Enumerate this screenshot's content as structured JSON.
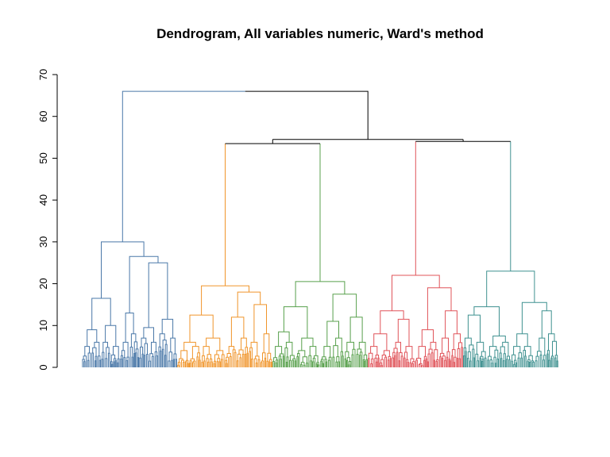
{
  "chart_data": {
    "type": "dendrogram",
    "title": "Dendrogram, All variables numeric, Ward's method",
    "xlabel": "",
    "ylabel": "",
    "ylim": [
      0,
      70
    ],
    "yticks": [
      0,
      10,
      20,
      30,
      40,
      50,
      60,
      70
    ],
    "grid": false,
    "root_color": "#000000",
    "clusters": [
      {
        "color": "#4a78a8",
        "height": 30,
        "tree": [
          [
            16.5,
            [
              9,
              5,
              6
            ],
            [
              10,
              6,
              5
            ]
          ],
          [
            26.5,
            [
              13,
              6,
              8
            ],
            [
              25,
              [
                9.5,
                7,
                6
              ],
              [
                11.5,
                8,
                7
              ]
            ]
          ]
        ]
      },
      {
        "color": "#f0952b",
        "height": 19.5,
        "tree": [
          [
            12.5,
            [
              6,
              4,
              5
            ],
            [
              7,
              5,
              4
            ]
          ],
          [
            18,
            [
              12,
              5,
              7
            ],
            [
              15,
              6,
              8
            ]
          ]
        ]
      },
      {
        "color": "#58a04c",
        "height": 20.5,
        "tree": [
          [
            14.5,
            [
              8.5,
              5,
              6
            ],
            [
              7,
              4,
              5
            ]
          ],
          [
            17.5,
            [
              11,
              5,
              7
            ],
            [
              12,
              6,
              6
            ]
          ]
        ]
      },
      {
        "color": "#e0545a",
        "height": 22,
        "tree": [
          [
            13.5,
            [
              8,
              5,
              4
            ],
            [
              11.5,
              6,
              5
            ]
          ],
          [
            19,
            [
              9,
              5,
              6
            ],
            [
              13.5,
              7,
              8
            ]
          ]
        ]
      },
      {
        "color": "#3f9190",
        "height": 23,
        "tree": [
          [
            14.5,
            [
              12.5,
              7,
              6
            ],
            [
              7.5,
              5,
              6
            ]
          ],
          [
            15.5,
            [
              8,
              5,
              5
            ],
            [
              13.5,
              7,
              8
            ]
          ]
        ]
      }
    ],
    "merges": [
      {
        "left": 1,
        "right": 2,
        "height": 53.5
      },
      {
        "left": 3,
        "right": 4,
        "height": 54
      },
      {
        "left": "m0",
        "right": "m1",
        "height": 54.5
      },
      {
        "left": 0,
        "right": "m2",
        "height": 66
      }
    ]
  }
}
